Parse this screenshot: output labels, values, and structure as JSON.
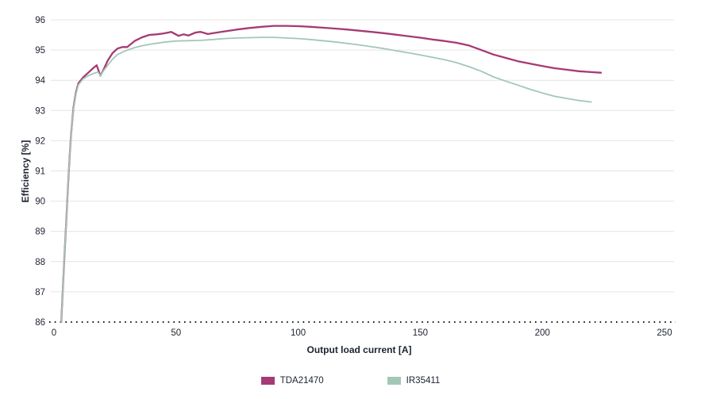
{
  "chart_data": {
    "type": "line",
    "title": "",
    "xlabel": "Output load current [A]",
    "ylabel": "Efficiency [%]",
    "xlim": [
      0,
      250
    ],
    "ylim": [
      86,
      96
    ],
    "xticks": [
      0,
      50,
      100,
      150,
      200,
      250
    ],
    "yticks": [
      86,
      87,
      88,
      89,
      90,
      91,
      92,
      93,
      94,
      95,
      96
    ],
    "grid": "horizontal",
    "grid_color": "#e4e4e4",
    "axis_text_color": "#1d2330",
    "baseline_style": "dotted",
    "baseline_color": "#1a1a1a",
    "legend_position": "bottom-center",
    "series": [
      {
        "name": "TDA21470",
        "color": "#a53a74",
        "line_width": 2.3,
        "points": [
          [
            3,
            86
          ],
          [
            3.5,
            86.9
          ],
          [
            4,
            87.7
          ],
          [
            4.5,
            88.5
          ],
          [
            5,
            89.3
          ],
          [
            5.5,
            90.1
          ],
          [
            6,
            90.9
          ],
          [
            6.5,
            91.6
          ],
          [
            7,
            92.2
          ],
          [
            8,
            93.1
          ],
          [
            9,
            93.6
          ],
          [
            10,
            93.9
          ],
          [
            11,
            94.0
          ],
          [
            12,
            94.1
          ],
          [
            14,
            94.25
          ],
          [
            16,
            94.4
          ],
          [
            17.5,
            94.5
          ],
          [
            19,
            94.15
          ],
          [
            20,
            94.3
          ],
          [
            22,
            94.65
          ],
          [
            24,
            94.9
          ],
          [
            26,
            95.05
          ],
          [
            28,
            95.1
          ],
          [
            30,
            95.1
          ],
          [
            33,
            95.3
          ],
          [
            36,
            95.42
          ],
          [
            39,
            95.5
          ],
          [
            42,
            95.52
          ],
          [
            45,
            95.55
          ],
          [
            48,
            95.6
          ],
          [
            51,
            95.47
          ],
          [
            53,
            95.52
          ],
          [
            55,
            95.48
          ],
          [
            58,
            95.58
          ],
          [
            60,
            95.6
          ],
          [
            63,
            95.53
          ],
          [
            66,
            95.57
          ],
          [
            70,
            95.62
          ],
          [
            75,
            95.68
          ],
          [
            80,
            95.73
          ],
          [
            85,
            95.77
          ],
          [
            90,
            95.8
          ],
          [
            95,
            95.8
          ],
          [
            100,
            95.79
          ],
          [
            105,
            95.77
          ],
          [
            110,
            95.74
          ],
          [
            115,
            95.71
          ],
          [
            120,
            95.68
          ],
          [
            125,
            95.64
          ],
          [
            130,
            95.6
          ],
          [
            135,
            95.56
          ],
          [
            140,
            95.51
          ],
          [
            145,
            95.46
          ],
          [
            150,
            95.41
          ],
          [
            155,
            95.35
          ],
          [
            160,
            95.3
          ],
          [
            165,
            95.24
          ],
          [
            170,
            95.15
          ],
          [
            175,
            95.0
          ],
          [
            180,
            94.85
          ],
          [
            185,
            94.74
          ],
          [
            190,
            94.63
          ],
          [
            195,
            94.55
          ],
          [
            200,
            94.47
          ],
          [
            205,
            94.4
          ],
          [
            210,
            94.35
          ],
          [
            215,
            94.3
          ],
          [
            220,
            94.27
          ],
          [
            224,
            94.25
          ]
        ]
      },
      {
        "name": "IR35411",
        "color": "#a3c7b7",
        "line_width": 1.8,
        "points": [
          [
            3,
            86
          ],
          [
            3.5,
            86.9
          ],
          [
            4,
            87.7
          ],
          [
            4.5,
            88.5
          ],
          [
            5,
            89.3
          ],
          [
            5.5,
            90.1
          ],
          [
            6,
            90.9
          ],
          [
            6.5,
            91.6
          ],
          [
            7,
            92.2
          ],
          [
            8,
            93.05
          ],
          [
            9,
            93.55
          ],
          [
            10,
            93.85
          ],
          [
            11,
            93.95
          ],
          [
            12,
            94.05
          ],
          [
            14,
            94.15
          ],
          [
            16,
            94.22
          ],
          [
            18,
            94.27
          ],
          [
            19,
            94.15
          ],
          [
            20,
            94.28
          ],
          [
            22,
            94.5
          ],
          [
            24,
            94.7
          ],
          [
            26,
            94.85
          ],
          [
            28,
            94.93
          ],
          [
            30,
            95.0
          ],
          [
            33,
            95.08
          ],
          [
            36,
            95.14
          ],
          [
            40,
            95.2
          ],
          [
            45,
            95.26
          ],
          [
            50,
            95.3
          ],
          [
            55,
            95.31
          ],
          [
            60,
            95.32
          ],
          [
            65,
            95.35
          ],
          [
            70,
            95.38
          ],
          [
            75,
            95.4
          ],
          [
            80,
            95.41
          ],
          [
            85,
            95.42
          ],
          [
            90,
            95.42
          ],
          [
            95,
            95.4
          ],
          [
            100,
            95.38
          ],
          [
            105,
            95.35
          ],
          [
            110,
            95.31
          ],
          [
            115,
            95.27
          ],
          [
            120,
            95.22
          ],
          [
            125,
            95.17
          ],
          [
            130,
            95.11
          ],
          [
            135,
            95.05
          ],
          [
            140,
            94.98
          ],
          [
            145,
            94.91
          ],
          [
            150,
            94.84
          ],
          [
            155,
            94.76
          ],
          [
            160,
            94.68
          ],
          [
            165,
            94.58
          ],
          [
            170,
            94.45
          ],
          [
            175,
            94.3
          ],
          [
            180,
            94.11
          ],
          [
            185,
            93.97
          ],
          [
            190,
            93.84
          ],
          [
            195,
            93.7
          ],
          [
            200,
            93.58
          ],
          [
            205,
            93.47
          ],
          [
            210,
            93.4
          ],
          [
            215,
            93.33
          ],
          [
            220,
            93.28
          ]
        ]
      }
    ]
  }
}
